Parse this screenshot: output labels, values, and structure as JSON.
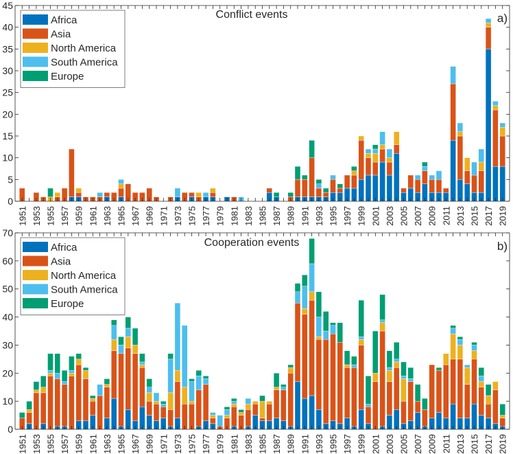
{
  "colors": {
    "Africa": "#0072BD",
    "Asia": "#D95319",
    "North America": "#EDB120",
    "South America": "#4DBEEE",
    "Europe": "#009E73"
  },
  "chart_data": [
    {
      "type": "bar",
      "stacked": true,
      "title": "Conflict events",
      "panel_label": "a)",
      "xlabel": "",
      "ylabel": "",
      "ylim": [
        0,
        45
      ],
      "yticks": [
        0,
        5,
        10,
        15,
        20,
        25,
        30,
        35,
        40,
        45
      ],
      "xlim": [
        1950,
        2020
      ],
      "xtick_labels": [
        "1951",
        "1953",
        "1955",
        "1957",
        "1959",
        "1961",
        "1963",
        "1965",
        "1967",
        "1969",
        "1971",
        "1973",
        "1975",
        "1977",
        "1979",
        "1981",
        "1983",
        "1985",
        "1987",
        "1989",
        "1991",
        "1993",
        "1995",
        "1997",
        "1999",
        "2001",
        "2003",
        "2005",
        "2007",
        "2009",
        "2011",
        "2013",
        "2015",
        "2017",
        "2019"
      ],
      "legend": [
        "Africa",
        "Asia",
        "North America",
        "South America",
        "Europe"
      ],
      "legend_position": "top-left",
      "grid": false,
      "categories": [
        1951,
        1952,
        1953,
        1954,
        1955,
        1956,
        1957,
        1958,
        1959,
        1960,
        1961,
        1962,
        1963,
        1964,
        1965,
        1966,
        1967,
        1968,
        1969,
        1970,
        1971,
        1972,
        1973,
        1974,
        1975,
        1976,
        1977,
        1978,
        1979,
        1980,
        1981,
        1982,
        1983,
        1984,
        1985,
        1986,
        1987,
        1988,
        1989,
        1990,
        1991,
        1992,
        1993,
        1994,
        1995,
        1996,
        1997,
        1998,
        1999,
        2000,
        2001,
        2002,
        2003,
        2004,
        2005,
        2006,
        2007,
        2008,
        2009,
        2010,
        2011,
        2012,
        2013,
        2014,
        2015,
        2016,
        2017,
        2018,
        2019
      ],
      "series": [
        {
          "name": "Africa",
          "values": [
            0,
            0,
            0,
            0,
            0,
            0,
            0,
            1,
            1,
            0,
            0,
            0,
            1,
            0,
            1,
            0,
            0,
            0,
            0,
            0,
            0,
            0,
            1,
            0,
            1,
            0,
            1,
            1,
            0,
            1,
            0,
            0,
            0,
            0,
            0,
            2,
            1,
            0,
            0,
            1,
            1,
            1,
            1,
            1,
            2,
            2,
            3,
            3,
            5,
            6,
            6,
            9,
            6,
            11,
            2,
            3,
            2,
            4,
            2,
            2,
            2,
            14,
            5,
            4,
            2,
            2,
            35,
            8,
            8
          ]
        },
        {
          "name": "Asia",
          "values": [
            3,
            0,
            2,
            1,
            0,
            1,
            3,
            11,
            1,
            1,
            1,
            1,
            1,
            2,
            2,
            4,
            2,
            2,
            3,
            1,
            0,
            1,
            0,
            2,
            1,
            1,
            0,
            1,
            0,
            0,
            1,
            0,
            0,
            0,
            0,
            1,
            0,
            0,
            1,
            4,
            4,
            9,
            2,
            1,
            3,
            1,
            3,
            3,
            9,
            4,
            3,
            3,
            3,
            2,
            1,
            3,
            3,
            3,
            3,
            3,
            1,
            13,
            10,
            3,
            4,
            5,
            5,
            13,
            7
          ]
        },
        {
          "name": "North America",
          "values": [
            0,
            0,
            0,
            0,
            1,
            1,
            0,
            0,
            1,
            0,
            0,
            0,
            0,
            0,
            1,
            0,
            0,
            0,
            0,
            0,
            0,
            0,
            0,
            0,
            0,
            1,
            0,
            1,
            0,
            0,
            0,
            0,
            0,
            0,
            0,
            0,
            0,
            0,
            0,
            0,
            0,
            0,
            0,
            0,
            0,
            0,
            0,
            1,
            1,
            1,
            2,
            1,
            1,
            3,
            0,
            0,
            0,
            0,
            0,
            0,
            0,
            0,
            1,
            3,
            0,
            2,
            1,
            1,
            2
          ]
        },
        {
          "name": "South America",
          "values": [
            0,
            0,
            0,
            0,
            0,
            0,
            0,
            0,
            0,
            0,
            0,
            1,
            0,
            0,
            1,
            0,
            0,
            0,
            0,
            0,
            0,
            0,
            2,
            0,
            0,
            0,
            1,
            0,
            0,
            0,
            0,
            1,
            0,
            0,
            0,
            0,
            0,
            0,
            0,
            0,
            0,
            0,
            1,
            0,
            1,
            0,
            0,
            0,
            0,
            1,
            1,
            3,
            2,
            0,
            0,
            0,
            1,
            1,
            1,
            2,
            0,
            4,
            2,
            0,
            3,
            3,
            1,
            1,
            1
          ]
        },
        {
          "name": "Europe",
          "values": [
            0,
            0,
            0,
            0,
            2,
            0,
            0,
            0,
            0,
            0,
            0,
            0,
            0,
            0,
            0,
            0,
            0,
            0,
            0,
            0,
            0,
            0,
            0,
            0,
            0,
            0,
            0,
            0,
            0,
            0,
            0,
            0,
            0,
            0,
            0,
            0,
            1,
            0,
            1,
            3,
            1,
            4,
            1,
            1,
            0,
            1,
            0,
            1,
            0,
            0,
            1,
            0,
            0,
            0,
            0,
            0,
            0,
            1,
            0,
            0,
            0,
            0,
            0,
            0,
            0,
            0,
            0,
            0,
            0
          ]
        }
      ]
    },
    {
      "type": "bar",
      "stacked": true,
      "title": "Cooperation events",
      "panel_label": "b)",
      "xlabel": "",
      "ylabel": "",
      "ylim": [
        0,
        70
      ],
      "yticks": [
        0,
        10,
        20,
        30,
        40,
        50,
        60,
        70
      ],
      "xlim": [
        1950,
        2020
      ],
      "xtick_labels": [
        "1951",
        "1953",
        "1955",
        "1957",
        "1959",
        "1961",
        "1963",
        "1965",
        "1967",
        "1969",
        "1971",
        "1973",
        "1975",
        "1977",
        "1979",
        "1981",
        "1983",
        "1985",
        "1987",
        "1989",
        "1991",
        "1993",
        "1995",
        "1997",
        "1999",
        "2001",
        "2003",
        "2005",
        "2007",
        "2009",
        "2011",
        "2013",
        "2015",
        "2017",
        "2019"
      ],
      "legend": [
        "Africa",
        "Asia",
        "North America",
        "South America",
        "Europe"
      ],
      "legend_position": "top-left",
      "grid": false,
      "categories": [
        1951,
        1952,
        1953,
        1954,
        1955,
        1956,
        1957,
        1958,
        1959,
        1960,
        1961,
        1962,
        1963,
        1964,
        1965,
        1966,
        1967,
        1968,
        1969,
        1970,
        1971,
        1972,
        1973,
        1974,
        1975,
        1976,
        1977,
        1978,
        1979,
        1980,
        1981,
        1982,
        1983,
        1984,
        1985,
        1986,
        1987,
        1988,
        1989,
        1990,
        1991,
        1992,
        1993,
        1994,
        1995,
        1996,
        1997,
        1998,
        1999,
        2000,
        2001,
        2002,
        2003,
        2004,
        2005,
        2006,
        2007,
        2008,
        2009,
        2010,
        2011,
        2012,
        2013,
        2014,
        2015,
        2016,
        2017,
        2018,
        2019
      ],
      "series": [
        {
          "name": "Africa",
          "values": [
            0,
            2,
            0,
            2,
            0,
            1,
            1,
            0,
            3,
            3,
            5,
            0,
            4,
            11,
            1,
            7,
            3,
            8,
            5,
            3,
            4,
            1,
            4,
            0,
            0,
            1,
            3,
            2,
            0,
            0,
            1,
            0,
            1,
            5,
            3,
            3,
            4,
            3,
            1,
            17,
            11,
            12,
            7,
            2,
            3,
            2,
            4,
            1,
            7,
            2,
            0,
            1,
            5,
            7,
            2,
            3,
            6,
            1,
            4,
            6,
            4,
            9,
            4,
            4,
            9,
            5,
            4,
            2,
            1
          ]
        },
        {
          "name": "Asia",
          "values": [
            4,
            4,
            13,
            11,
            19,
            17,
            15,
            19,
            20,
            15,
            5,
            12,
            11,
            17,
            26,
            22,
            24,
            14,
            5,
            6,
            4,
            6,
            13,
            9,
            9,
            13,
            13,
            2,
            1,
            4,
            7,
            5,
            6,
            4,
            1,
            6,
            10,
            11,
            19,
            28,
            30,
            34,
            25,
            30,
            31,
            29,
            18,
            21,
            23,
            6,
            17,
            34,
            12,
            15,
            8,
            14,
            4,
            6,
            19,
            15,
            19,
            16,
            21,
            12,
            16,
            10,
            5,
            12,
            3
          ]
        },
        {
          "name": "North America",
          "values": [
            0,
            1,
            1,
            2,
            1,
            0,
            0,
            1,
            2,
            3,
            1,
            0,
            1,
            4,
            0,
            4,
            3,
            1,
            3,
            1,
            0,
            6,
            4,
            6,
            1,
            0,
            0,
            1,
            0,
            1,
            1,
            1,
            2,
            1,
            6,
            1,
            1,
            0,
            2,
            0,
            2,
            3,
            1,
            0,
            0,
            0,
            1,
            0,
            2,
            0,
            3,
            3,
            4,
            2,
            8,
            0,
            0,
            0,
            0,
            0,
            4,
            9,
            5,
            6,
            3,
            2,
            3,
            3,
            1
          ]
        },
        {
          "name": "South America",
          "values": [
            0,
            0,
            0,
            0,
            1,
            2,
            1,
            1,
            0,
            0,
            0,
            4,
            0,
            5,
            3,
            3,
            0,
            1,
            2,
            3,
            1,
            12,
            24,
            22,
            7,
            5,
            2,
            1,
            4,
            2,
            1,
            0,
            2,
            0,
            0,
            0,
            0,
            1,
            0,
            4,
            8,
            10,
            7,
            3,
            3,
            0,
            0,
            1,
            1,
            1,
            0,
            1,
            1,
            1,
            1,
            1,
            0,
            0,
            0,
            0,
            0,
            2,
            2,
            1,
            2,
            2,
            0,
            0,
            0
          ]
        },
        {
          "name": "Europe",
          "values": [
            2,
            3,
            3,
            4,
            6,
            7,
            4,
            5,
            2,
            1,
            1,
            0,
            2,
            2,
            3,
            4,
            6,
            3,
            3,
            0,
            1,
            2,
            0,
            0,
            1,
            2,
            1,
            0,
            0,
            1,
            1,
            1,
            0,
            0,
            2,
            0,
            5,
            1,
            1,
            3,
            4,
            9,
            9,
            7,
            1,
            7,
            5,
            3,
            13,
            10,
            15,
            9,
            6,
            6,
            5,
            4,
            6,
            4,
            0,
            1,
            0,
            1,
            1,
            0,
            1,
            3,
            4,
            0,
            4
          ]
        }
      ]
    }
  ]
}
